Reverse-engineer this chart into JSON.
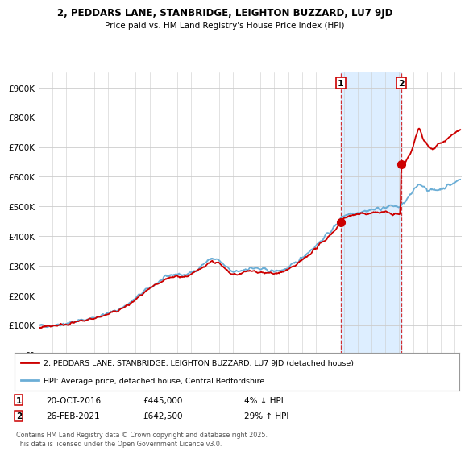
{
  "title": "2, PEDDARS LANE, STANBRIDGE, LEIGHTON BUZZARD, LU7 9JD",
  "subtitle": "Price paid vs. HM Land Registry's House Price Index (HPI)",
  "ytick_values": [
    0,
    100000,
    200000,
    300000,
    400000,
    500000,
    600000,
    700000,
    800000,
    900000
  ],
  "ylim": [
    0,
    950000
  ],
  "hpi_color": "#6baed6",
  "price_color": "#CC0000",
  "shade_color": "#ddeeff",
  "transaction1_year": 2016.792,
  "transaction1_price": 445000,
  "transaction2_year": 2021.15,
  "transaction2_price": 642500,
  "transaction1_date": "20-OCT-2016",
  "transaction2_date": "26-FEB-2021",
  "transaction1_pct": "4% ↓ HPI",
  "transaction2_pct": "29% ↑ HPI",
  "legend_line1": "2, PEDDARS LANE, STANBRIDGE, LEIGHTON BUZZARD, LU7 9JD (detached house)",
  "legend_line2": "HPI: Average price, detached house, Central Bedfordshire",
  "footnote": "Contains HM Land Registry data © Crown copyright and database right 2025.\nThis data is licensed under the Open Government Licence v3.0.",
  "background_color": "#ffffff",
  "grid_color": "#cccccc",
  "xmin": 1995,
  "xmax": 2025.5
}
